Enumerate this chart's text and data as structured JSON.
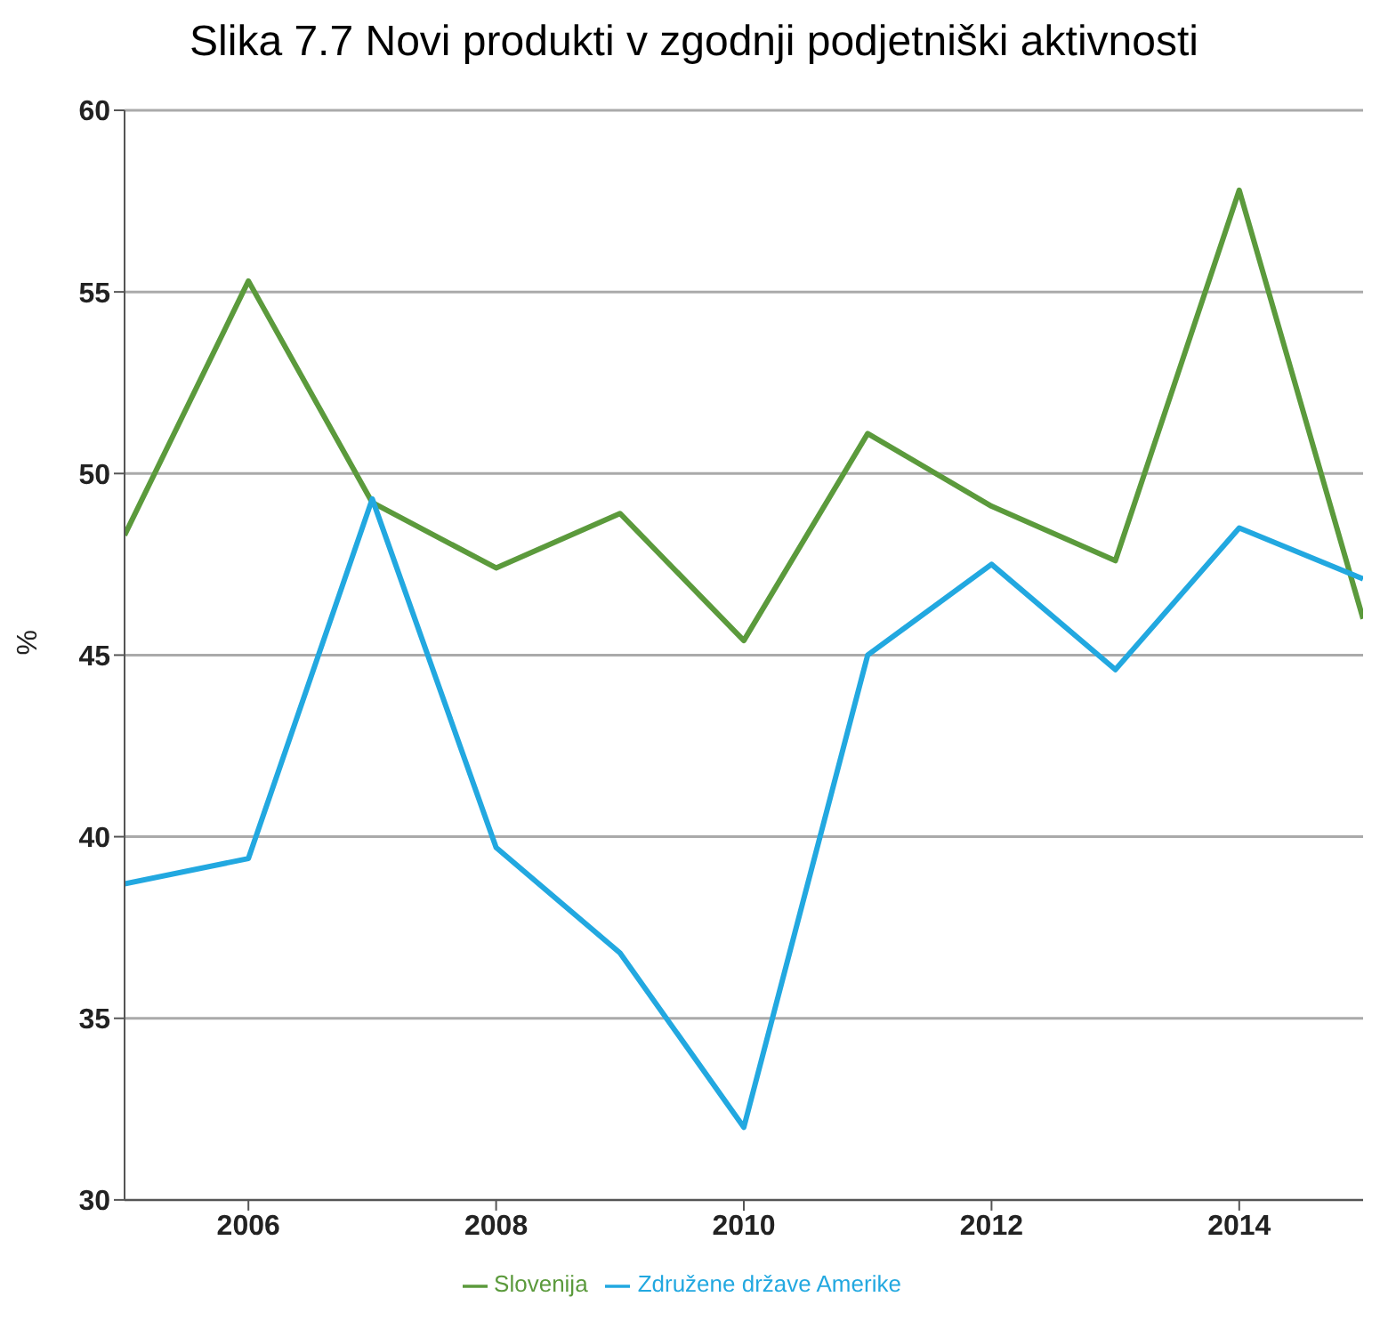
{
  "chart_data": {
    "type": "line",
    "title": "Slika 7.7 Novi produkti v zgodnji podjetniški aktivnosti",
    "ylabel": "%",
    "x": [
      2005,
      2006,
      2007,
      2008,
      2009,
      2010,
      2011,
      2012,
      2013,
      2014,
      2015
    ],
    "series": [
      {
        "name": "Slovenija",
        "color": "#5b9a3c",
        "values": [
          48.3,
          55.3,
          49.2,
          47.4,
          48.9,
          45.4,
          51.1,
          49.1,
          47.6,
          57.8,
          46
        ]
      },
      {
        "name": "Združene države Amerike",
        "color": "#22a8e0",
        "values": [
          38.7,
          39.4,
          49.3,
          39.7,
          36.8,
          32,
          45,
          47.5,
          44.6,
          48.5,
          47.1
        ]
      }
    ],
    "xlim": [
      2005,
      2015
    ],
    "xticks": [
      2006,
      2008,
      2010,
      2012,
      2014
    ],
    "ylim": [
      30,
      60
    ],
    "yticks": [
      30,
      35,
      40,
      45,
      50,
      55,
      60
    ],
    "grid": "y",
    "legend": "bottom",
    "marker": "none",
    "line_style": "solid"
  }
}
